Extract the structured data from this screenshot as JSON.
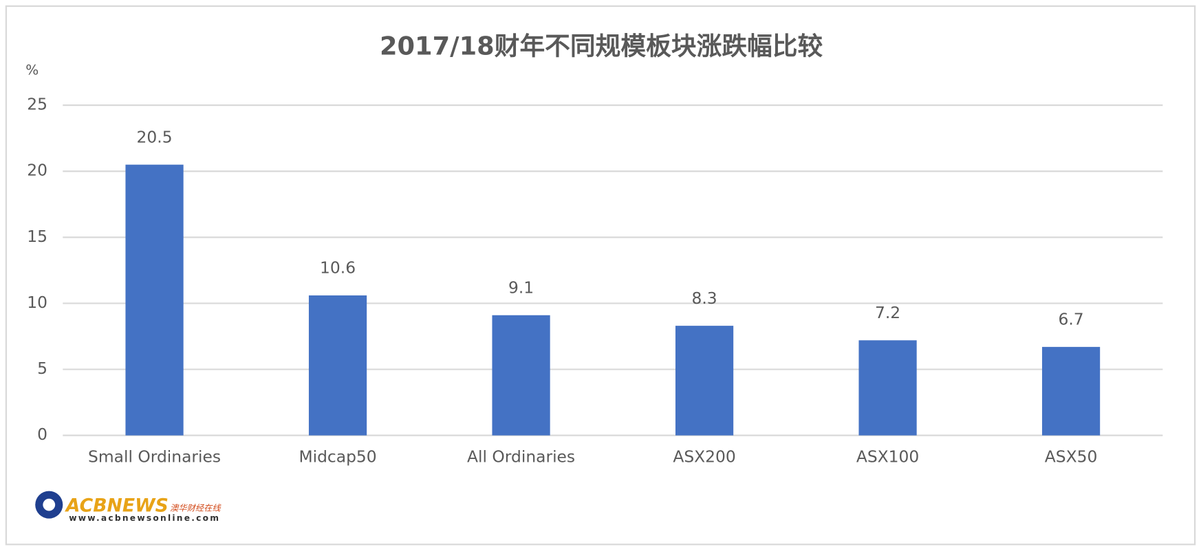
{
  "chart_data": {
    "type": "bar",
    "title": "2017/18财年不同规模板块涨跌幅比较",
    "y_label": "%",
    "categories": [
      "Small Ordinaries",
      "Midcap50",
      "All Ordinaries",
      "ASX200",
      "ASX100",
      "ASX50"
    ],
    "values": [
      20.5,
      10.6,
      9.1,
      8.3,
      7.2,
      6.7
    ],
    "color": "#4472c4",
    "ylim": [
      0,
      25
    ],
    "yticks": [
      0,
      5,
      10,
      15,
      20,
      25
    ],
    "grid": true,
    "data_labels": true
  },
  "logo": {
    "name": "ACBNEWS",
    "tagline": "澳华财经在线",
    "url": "www.acbnewsonline.com"
  }
}
